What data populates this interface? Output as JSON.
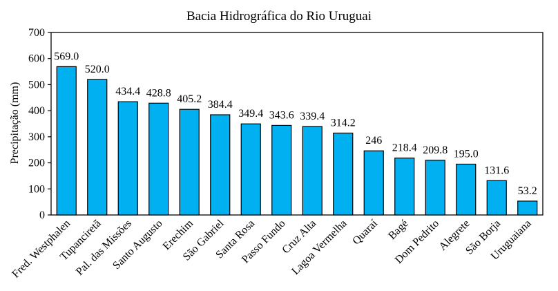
{
  "chart_data": {
    "type": "bar",
    "title": "Bacia Hidrográfica  do Rio Uruguai",
    "xlabel": "",
    "ylabel": "Precipitação (mm)",
    "ylim": [
      0,
      700
    ],
    "yticks": [
      "0",
      "100",
      "200",
      "300",
      "400",
      "500",
      "600",
      "700"
    ],
    "grid": false,
    "legend": "none",
    "bar_color": "#00B0F0",
    "categories": [
      "Fred. Westphalen",
      "Tupanciretã",
      "Pal. das Missões",
      "Santo Augusto",
      "Erechim",
      "São Gabriel",
      "Santa Rosa",
      "Passo Fundo",
      "Cruz Alta",
      "Lagoa Vermelha",
      "Quaraí",
      "Bagé",
      "Dom Pedrito",
      "Alegrete",
      "São Borja",
      "Uruguaiana"
    ],
    "values": [
      569.0,
      520.0,
      434.4,
      428.8,
      405.2,
      384.4,
      349.4,
      343.6,
      339.4,
      314.2,
      246,
      218.4,
      209.8,
      195.0,
      131.6,
      53.2
    ],
    "data_labels": [
      "569.0",
      "520.0",
      "434.4",
      "428.8",
      "405.2",
      "384.4",
      "349.4",
      "343.6",
      "339.4",
      "314.2",
      "246",
      "218.4",
      "209.8",
      "195.0",
      "131.6",
      "53.2"
    ]
  }
}
